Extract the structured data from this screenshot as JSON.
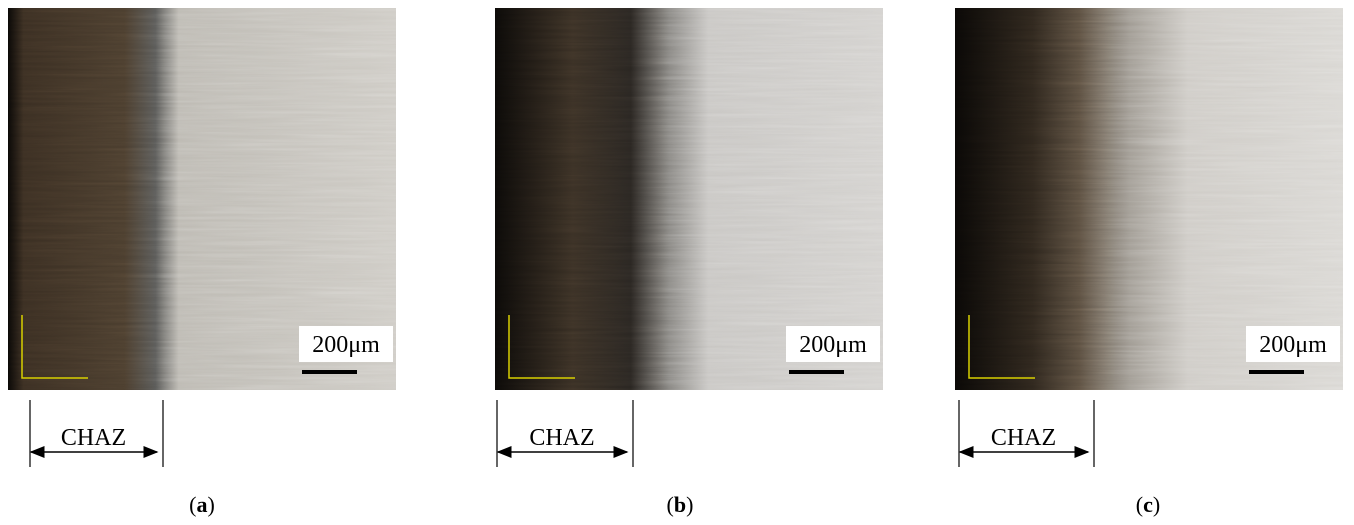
{
  "panels": [
    {
      "scale_label": "200μm",
      "zone_label": "CHAZ",
      "caption_open": "(",
      "caption_letter": "a",
      "caption_close": ")"
    },
    {
      "scale_label": "200μm",
      "zone_label": "CHAZ",
      "caption_open": "(",
      "caption_letter": "b",
      "caption_close": ")"
    },
    {
      "scale_label": "200μm",
      "zone_label": "CHAZ",
      "caption_open": "(",
      "caption_letter": "c",
      "caption_close": ")"
    }
  ]
}
